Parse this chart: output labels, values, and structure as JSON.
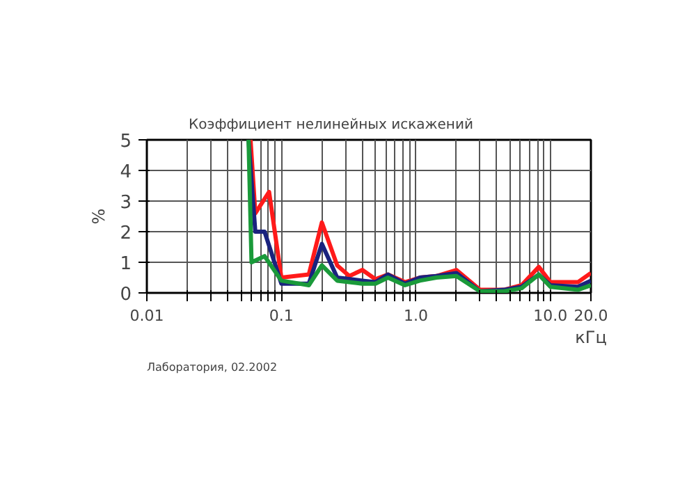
{
  "chart_data": {
    "type": "line",
    "title": "Коэффициент нелинейных искажений",
    "xlabel": "кГц",
    "ylabel": "%",
    "annotations": [
      "Лаборатория, 02.2002"
    ],
    "log": "x",
    "xlim": [
      0.01,
      20
    ],
    "ylim": [
      0,
      5
    ],
    "yticks": [
      0,
      1,
      2,
      3,
      4,
      5
    ],
    "xticks": [
      {
        "value": 0.01,
        "label": "0.01"
      },
      {
        "value": 0.02,
        "label": null
      },
      {
        "value": 0.03,
        "label": null
      },
      {
        "value": 0.04,
        "label": null
      },
      {
        "value": 0.05,
        "label": null
      },
      {
        "value": 0.06,
        "label": null
      },
      {
        "value": 0.07,
        "label": null
      },
      {
        "value": 0.08,
        "label": null
      },
      {
        "value": 0.09,
        "label": null
      },
      {
        "value": 0.1,
        "label": "0.1"
      },
      {
        "value": 0.2,
        "label": null
      },
      {
        "value": 0.3,
        "label": null
      },
      {
        "value": 0.4,
        "label": null
      },
      {
        "value": 0.5,
        "label": null
      },
      {
        "value": 0.6,
        "label": null
      },
      {
        "value": 0.7,
        "label": null
      },
      {
        "value": 0.8,
        "label": null
      },
      {
        "value": 0.9,
        "label": null
      },
      {
        "value": 1,
        "label": "1.0"
      },
      {
        "value": 2,
        "label": null
      },
      {
        "value": 3,
        "label": null
      },
      {
        "value": 4,
        "label": null
      },
      {
        "value": 5,
        "label": null
      },
      {
        "value": 6,
        "label": null
      },
      {
        "value": 7,
        "label": null
      },
      {
        "value": 8,
        "label": null
      },
      {
        "value": 9,
        "label": null
      },
      {
        "value": 10,
        "label": "10.0"
      },
      {
        "value": 20,
        "label": "20.0"
      }
    ],
    "grid": true,
    "line_style": "solid",
    "marker": "none",
    "series": [
      {
        "color": "#ff1a1a",
        "x": [
          0.059,
          0.064,
          0.081,
          0.1,
          0.16,
          0.2,
          0.26,
          0.32,
          0.4,
          0.5,
          0.62,
          0.83,
          1.07,
          1.42,
          2.0,
          3.0,
          4.5,
          6.1,
          8.2,
          10,
          16,
          20
        ],
        "values": [
          5,
          2.6,
          3.3,
          0.5,
          0.6,
          2.3,
          0.9,
          0.55,
          0.75,
          0.45,
          0.6,
          0.35,
          0.5,
          0.55,
          0.75,
          0.1,
          0.1,
          0.25,
          0.85,
          0.35,
          0.35,
          0.65
        ]
      },
      {
        "color": "#1a237e",
        "x": [
          0.057,
          0.064,
          0.075,
          0.1,
          0.16,
          0.2,
          0.26,
          0.4,
          0.5,
          0.62,
          0.83,
          1.07,
          1.42,
          2.0,
          3.0,
          4.5,
          6.1,
          8.2,
          10,
          16,
          20
        ],
        "values": [
          5,
          2.0,
          2.0,
          0.3,
          0.3,
          1.6,
          0.5,
          0.4,
          0.35,
          0.6,
          0.3,
          0.5,
          0.55,
          0.65,
          0.05,
          0.1,
          0.2,
          0.6,
          0.25,
          0.2,
          0.4
        ]
      },
      {
        "color": "#1a9a3a",
        "x": [
          0.057,
          0.06,
          0.075,
          0.1,
          0.16,
          0.2,
          0.26,
          0.4,
          0.5,
          0.62,
          0.83,
          1.07,
          1.42,
          2.0,
          3.0,
          4.5,
          6.1,
          8.2,
          10,
          16,
          20
        ],
        "values": [
          5,
          1.0,
          1.2,
          0.4,
          0.25,
          0.9,
          0.4,
          0.3,
          0.3,
          0.5,
          0.25,
          0.4,
          0.5,
          0.55,
          0.05,
          0.05,
          0.15,
          0.6,
          0.2,
          0.1,
          0.25
        ]
      }
    ]
  }
}
